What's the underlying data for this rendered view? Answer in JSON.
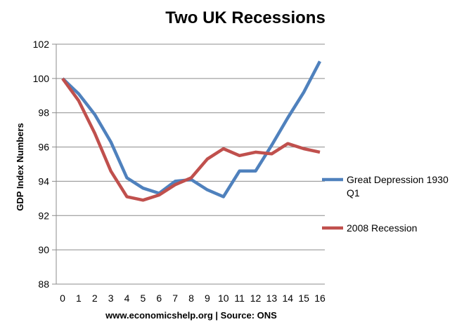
{
  "chart_data": {
    "type": "line",
    "title": "Two UK Recessions",
    "xlabel": "www.economicshelp.org | Source: ONS",
    "ylabel": "GDP Index Numbers",
    "x": [
      0,
      1,
      2,
      3,
      4,
      5,
      6,
      7,
      8,
      9,
      10,
      11,
      12,
      13,
      14,
      15,
      16
    ],
    "x_tick_labels": [
      "0",
      "1",
      "2",
      "3",
      "4",
      "5",
      "6",
      "7",
      "8",
      "9",
      "10",
      "11",
      "12",
      "13",
      "14",
      "15",
      "16"
    ],
    "y_ticks": [
      88,
      90,
      92,
      94,
      96,
      98,
      100,
      102
    ],
    "y_tick_labels": [
      "88",
      "90",
      "92",
      "94",
      "96",
      "98",
      "100",
      "102"
    ],
    "ylim": [
      88,
      102
    ],
    "grid": "horizontal",
    "legend_position": "right",
    "series": [
      {
        "name_lines": [
          "Great Depression 1930",
          "Q1"
        ],
        "color": "#4f81bd",
        "values": [
          100,
          99.1,
          97.9,
          96.3,
          94.2,
          93.6,
          93.3,
          94.0,
          94.1,
          93.5,
          93.1,
          94.6,
          94.6,
          96.1,
          97.7,
          99.2,
          101.0
        ]
      },
      {
        "name": "2008 Recession",
        "color": "#c0504d",
        "values": [
          100,
          98.7,
          96.8,
          94.6,
          93.1,
          92.9,
          93.2,
          93.8,
          94.2,
          95.3,
          95.9,
          95.5,
          95.7,
          95.6,
          96.2,
          95.9,
          95.7
        ]
      }
    ]
  }
}
